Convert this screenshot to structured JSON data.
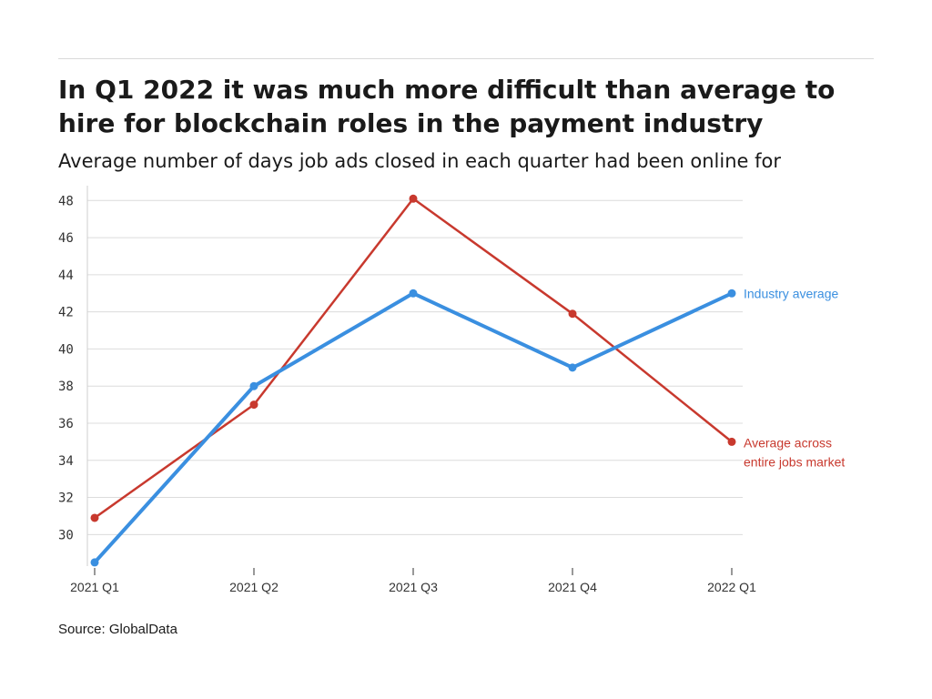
{
  "title": "In Q1 2022 it was much more difficult than average to hire for blockchain roles in the payment industry",
  "subtitle": "Average number of days job ads closed in each quarter had been online for",
  "source": "Source: GlobalData",
  "chart_data": {
    "type": "line",
    "x": [
      "2021 Q1",
      "2021 Q2",
      "2021 Q3",
      "2021 Q4",
      "2022 Q1"
    ],
    "series": [
      {
        "name": "Industry average",
        "values": [
          28.5,
          38,
          43,
          39,
          43
        ],
        "color": "#3a8fe0"
      },
      {
        "name": "Average across entire jobs market",
        "label_lines": [
          "Average across",
          "entire jobs market"
        ],
        "values": [
          30.9,
          37,
          48.1,
          41.9,
          35
        ],
        "color": "#c8392e"
      }
    ],
    "yticks": [
      "30",
      "32",
      "34",
      "36",
      "38",
      "40",
      "42",
      "44",
      "46",
      "48"
    ],
    "ylim": [
      28.3,
      48.8
    ],
    "grid": true,
    "legend": "inline-right"
  }
}
